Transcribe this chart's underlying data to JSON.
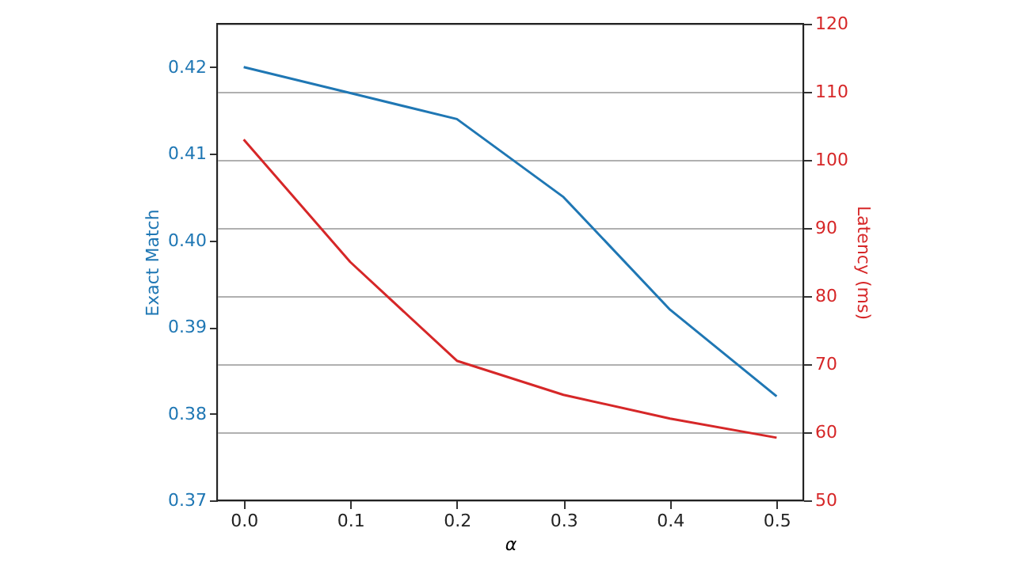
{
  "chart_data": {
    "type": "line",
    "xlabel": "α",
    "ylabel": "Exact Match",
    "y2label": "Latency (ms)",
    "x": [
      0.0,
      0.1,
      0.2,
      0.3,
      0.4,
      0.5
    ],
    "xlim": [
      -0.025,
      0.525
    ],
    "xticks": [
      {
        "value": 0,
        "label": "0.0"
      },
      0.1,
      0.2,
      0.3,
      0.4,
      0.5
    ],
    "ylim": [
      0.37,
      0.425
    ],
    "yticks": [
      {
        "value": 0.37,
        "label": "0.37"
      },
      {
        "value": 0.38,
        "label": "0.38"
      },
      {
        "value": 0.39,
        "label": "0.39"
      },
      {
        "value": 0.4,
        "label": "0.40"
      },
      {
        "value": 0.41,
        "label": "0.41"
      },
      {
        "value": 0.42,
        "label": "0.42"
      }
    ],
    "y2lim": [
      50,
      120
    ],
    "y2ticks": [
      50,
      60,
      70,
      80,
      90,
      100,
      110,
      120
    ],
    "grid": "y2",
    "marker": "none",
    "line_style": "solid",
    "series": [
      {
        "color": "#1f77b4",
        "values": [
          0.42,
          0.417,
          0.414,
          0.405,
          0.392,
          0.382
        ]
      },
      {
        "color": "#d62728",
        "axis": "y2",
        "values": [
          103,
          85,
          70.5,
          65.5,
          62,
          59.2
        ]
      }
    ]
  }
}
